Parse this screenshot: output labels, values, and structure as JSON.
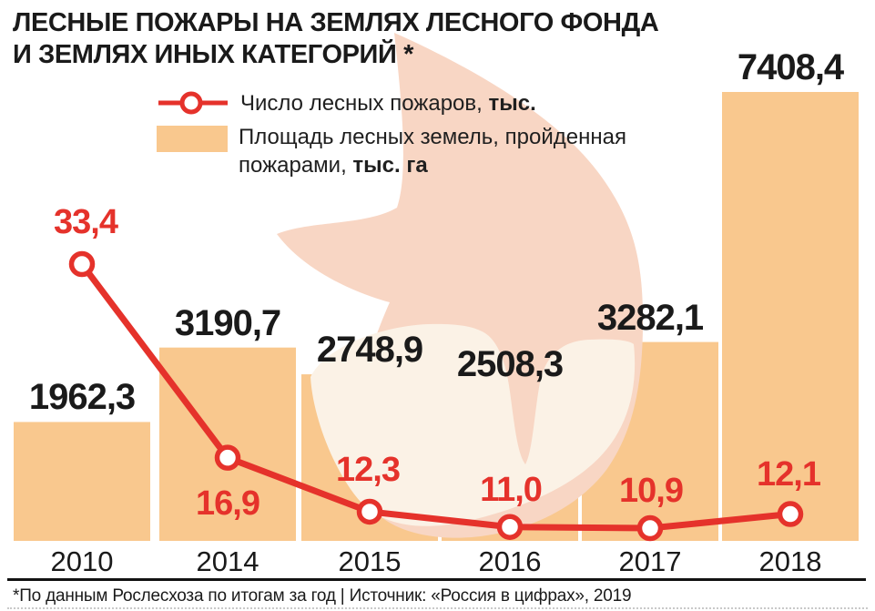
{
  "title": {
    "line1": "ЛЕСНЫЕ ПОЖАРЫ НА ЗЕМЛЯХ ЛЕСНОГО ФОНДА",
    "line2": "И ЗЕМЛЯХ ИНЫХ КАТЕГОРИЙ *"
  },
  "legend": {
    "line_series": {
      "text": "Число лесных пожаров, ",
      "bold": "тыс."
    },
    "bar_series": {
      "text": "Площадь лесных земель, пройденная пожарами, ",
      "bold": "тыс. га"
    }
  },
  "footer": {
    "note": "*По данным Рослесхоза по итогам за год | Источник: «Россия в цифрах», 2019"
  },
  "colors": {
    "red": "#E5322B",
    "bar": "#F9C88E",
    "flame_outer": "#F8D6C4",
    "flame_inner": "#FBF2E6",
    "text": "#1A1A1A"
  },
  "chart_data": {
    "type": "combo",
    "categories": [
      "2010",
      "2014",
      "2015",
      "2016",
      "2017",
      "2018"
    ],
    "series": [
      {
        "name": "Число лесных пожаров",
        "unit": "тыс.",
        "type": "line",
        "color": "#E5322B",
        "values": [
          33.4,
          16.9,
          12.3,
          11.0,
          10.9,
          12.1
        ],
        "labels": [
          "33,4",
          "16,9",
          "12,3",
          "11,0",
          "10,9",
          "12,1"
        ]
      },
      {
        "name": "Площадь лесных земель, пройденная пожарами",
        "unit": "тыс. га",
        "type": "bar",
        "color": "#F9C88E",
        "values": [
          1962.3,
          3190.7,
          2748.9,
          2508.3,
          3282.1,
          7408.4
        ],
        "labels": [
          "1962,3",
          "3190,7",
          "2748,9",
          "2508,3",
          "3282,1",
          "7408,4"
        ]
      }
    ],
    "value_labels_shown": true,
    "axes_hidden": true,
    "legend_position": "top",
    "source": "«Россия в цифрах», 2019"
  }
}
